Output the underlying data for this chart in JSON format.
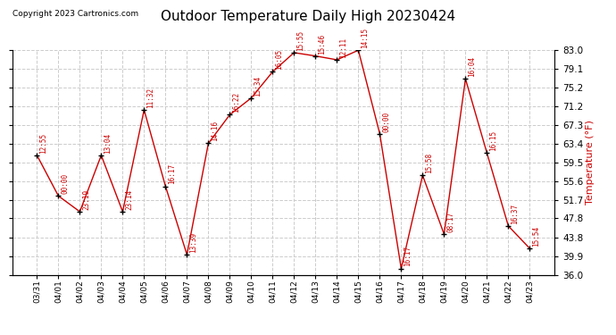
{
  "title": "Outdoor Temperature Daily High 20230424",
  "copyright": "Copyright 2023 Cartronics.com",
  "ylabel": "Temperature (°F)",
  "ylim": [
    36.0,
    83.0
  ],
  "yticks": [
    36.0,
    39.9,
    43.8,
    47.8,
    51.7,
    55.6,
    59.5,
    63.4,
    67.3,
    71.2,
    75.2,
    79.1,
    83.0
  ],
  "dates": [
    "03/31",
    "04/01",
    "04/02",
    "04/03",
    "04/04",
    "04/05",
    "04/06",
    "04/07",
    "04/08",
    "04/09",
    "04/10",
    "04/11",
    "04/12",
    "04/13",
    "04/14",
    "04/15",
    "04/16",
    "04/17",
    "04/18",
    "04/19",
    "04/20",
    "04/21",
    "04/22",
    "04/23"
  ],
  "temps": [
    61.0,
    52.5,
    49.2,
    61.0,
    49.2,
    70.5,
    54.5,
    40.2,
    63.5,
    69.5,
    73.0,
    78.5,
    82.5,
    81.8,
    81.0,
    83.0,
    65.5,
    37.3,
    56.8,
    44.5,
    77.0,
    61.5,
    46.2,
    41.5
  ],
  "times": [
    "12:55",
    "00:00",
    "23:19",
    "13:04",
    "23:14",
    "11:32",
    "16:17",
    "13:39",
    "14:16",
    "16:22",
    "15:34",
    "16:05",
    "15:55",
    "15:46",
    "12:11",
    "14:15",
    "00:00",
    "16:17",
    "15:58",
    "08:17",
    "16:04",
    "16:15",
    "16:37",
    "15:54"
  ],
  "line_color": "#cc0000",
  "marker_color": "#000000",
  "label_color": "#cc0000",
  "background_color": "#ffffff",
  "grid_color": "#cccccc",
  "title_color": "#000000",
  "copyright_color": "#000000",
  "ylabel_color": "#cc0000",
  "title_fontsize": 11,
  "xlabel_fontsize": 6.5,
  "ylabel_fontsize": 8,
  "ytick_fontsize": 7.5,
  "annotation_fontsize": 5.5,
  "copyright_fontsize": 6.5
}
